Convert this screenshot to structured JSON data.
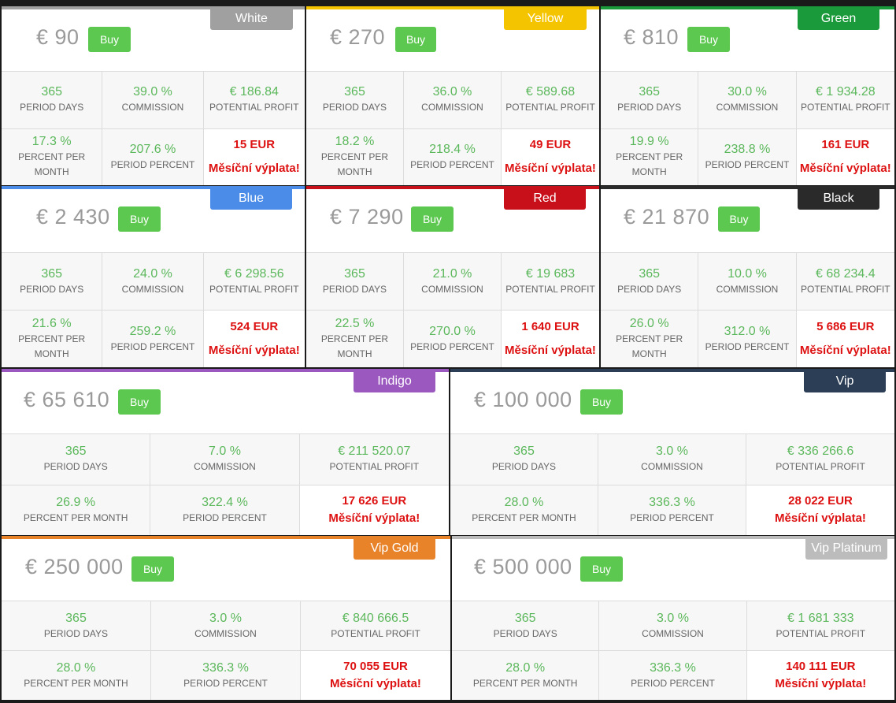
{
  "labels": {
    "buy": "Buy",
    "period_days": "PERIOD DAYS",
    "commission": "COMMISSION",
    "potential_profit": "POTENTIAL PROFIT",
    "percent_per_month": "PERCENT PER MONTH",
    "period_percent": "PERIOD PERCENT",
    "monthly_payout": "Měsíční výplata!"
  },
  "plans": [
    {
      "name": "White",
      "color": "#a0a0a0",
      "price": "€ 90",
      "days": "365",
      "commission": "39.0 %",
      "profit": "€ 186.84",
      "ppm": "17.3 %",
      "period_percent": "207.6 %",
      "payout": "15 EUR"
    },
    {
      "name": "Yellow",
      "color": "#f5c400",
      "price": "€ 270",
      "days": "365",
      "commission": "36.0 %",
      "profit": "€ 589.68",
      "ppm": "18.2 %",
      "period_percent": "218.4 %",
      "payout": "49 EUR"
    },
    {
      "name": "Green",
      "color": "#1a9a3a",
      "price": "€ 810",
      "days": "365",
      "commission": "30.0 %",
      "profit": "€ 1 934.28",
      "ppm": "19.9 %",
      "period_percent": "238.8 %",
      "payout": "161 EUR"
    },
    {
      "name": "Blue",
      "color": "#4a8ce8",
      "price": "€ 2 430",
      "days": "365",
      "commission": "24.0 %",
      "profit": "€ 6 298.56",
      "ppm": "21.6 %",
      "period_percent": "259.2 %",
      "payout": "524 EUR"
    },
    {
      "name": "Red",
      "color": "#c8101a",
      "price": "€ 7 290",
      "days": "365",
      "commission": "21.0 %",
      "profit": "€ 19 683",
      "ppm": "22.5 %",
      "period_percent": "270.0 %",
      "payout": "1 640 EUR"
    },
    {
      "name": "Black",
      "color": "#2a2a2a",
      "price": "€ 21 870",
      "days": "365",
      "commission": "10.0 %",
      "profit": "€ 68 234.4",
      "ppm": "26.0 %",
      "period_percent": "312.0 %",
      "payout": "5 686 EUR"
    },
    {
      "name": "Indigo",
      "color": "#9b59c0",
      "price": "€ 65 610",
      "days": "365",
      "commission": "7.0 %",
      "profit": "€ 211 520.07",
      "ppm": "26.9 %",
      "period_percent": "322.4 %",
      "payout": "17 626 EUR"
    },
    {
      "name": "Vip",
      "color": "#2c3e55",
      "price": "€ 100 000",
      "days": "365",
      "commission": "3.0 %",
      "profit": "€ 336 266.6",
      "ppm": "28.0 %",
      "period_percent": "336.3 %",
      "payout": "28 022 EUR"
    },
    {
      "name": "Vip Gold",
      "color": "#e8832a",
      "price": "€ 250 000",
      "days": "365",
      "commission": "3.0 %",
      "profit": "€ 840 666.5",
      "ppm": "28.0 %",
      "period_percent": "336.3 %",
      "payout": "70 055 EUR"
    },
    {
      "name": "Vip Platinum",
      "color": "#bcbcbc",
      "price": "€ 500 000",
      "days": "365",
      "commission": "3.0 %",
      "profit": "€ 1 681 333",
      "ppm": "28.0 %",
      "period_percent": "336.3 %",
      "payout": "140 111 EUR"
    }
  ]
}
